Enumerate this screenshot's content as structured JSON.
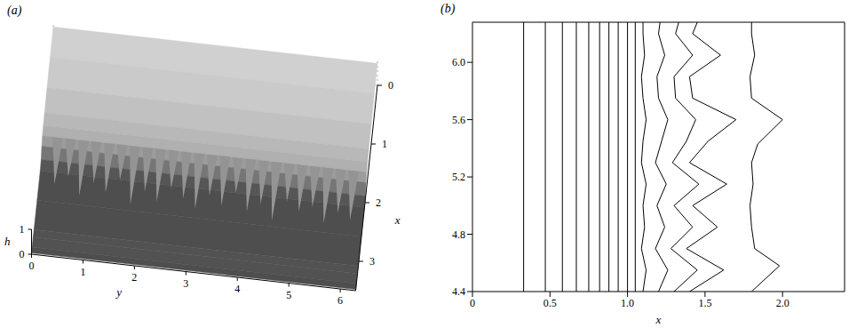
{
  "chart_data": [
    {
      "type": "surface",
      "title": "(a)",
      "xlabel": "x",
      "ylabel": "y",
      "zlabel": "h",
      "xlim": [
        0,
        3.5
      ],
      "ylim": [
        0,
        6.3
      ],
      "zlim": [
        0,
        1
      ],
      "xticks": [
        0,
        1,
        2,
        3
      ],
      "yticks": [
        0,
        1,
        2,
        3,
        4,
        5,
        6
      ],
      "zticks": [
        0,
        1
      ],
      "profile": {
        "x": [
          0,
          0.5,
          1.0,
          1.4,
          1.6,
          1.75,
          1.85,
          1.95,
          2.1,
          2.6,
          3.1,
          3.25,
          3.4,
          3.5
        ],
        "h": [
          0.88,
          0.85,
          0.8,
          0.74,
          0.69,
          0.63,
          0.45,
          0.15,
          0.05,
          0.05,
          0.05,
          0.1,
          0.05,
          0.05
        ]
      },
      "fingers": {
        "base": 1.75,
        "y": [
          0.3,
          0.55,
          0.8,
          1.05,
          1.3,
          1.55,
          1.8,
          2.05,
          2.3,
          2.55,
          2.8,
          3.05,
          3.3,
          3.55,
          3.8,
          4.05,
          4.3,
          4.55,
          4.8,
          5.05,
          5.3,
          5.55,
          5.8,
          6.05
        ],
        "x": [
          2.3,
          2.15,
          2.45,
          2.2,
          2.35,
          2.1,
          2.5,
          2.25,
          2.4,
          2.15,
          2.3,
          2.45,
          2.2,
          2.35,
          2.1,
          2.4,
          2.25,
          2.5,
          2.15,
          2.3,
          2.2,
          2.45,
          2.25,
          2.35
        ]
      }
    },
    {
      "type": "contour",
      "title": "(b)",
      "xlabel": "x",
      "xlim": [
        0,
        2.4
      ],
      "ylim": [
        4.4,
        6.28
      ],
      "xticks": [
        0,
        0.5,
        {
          "value": 1,
          "label": "1.0"
        },
        1.5,
        {
          "value": 2,
          "label": "2.0"
        }
      ],
      "yticks": [
        4.4,
        4.8,
        5.2,
        5.6,
        {
          "value": 6,
          "label": "6.0"
        }
      ],
      "color": "#000000",
      "contours": [
        {
          "x": [
            0.33,
            0.33
          ],
          "y": [
            4.4,
            6.28
          ]
        },
        {
          "x": [
            0.47,
            0.47
          ],
          "y": [
            4.4,
            6.28
          ]
        },
        {
          "x": [
            0.58,
            0.58
          ],
          "y": [
            4.4,
            6.28
          ]
        },
        {
          "x": [
            0.67,
            0.67
          ],
          "y": [
            4.4,
            6.28
          ]
        },
        {
          "x": [
            0.75,
            0.75
          ],
          "y": [
            4.4,
            6.28
          ]
        },
        {
          "x": [
            0.82,
            0.82
          ],
          "y": [
            4.4,
            6.28
          ]
        },
        {
          "x": [
            0.88,
            0.88
          ],
          "y": [
            4.4,
            6.28
          ]
        },
        {
          "x": [
            0.94,
            0.94
          ],
          "y": [
            4.4,
            6.28
          ]
        },
        {
          "x": [
            1.0,
            1.0
          ],
          "y": [
            4.4,
            6.28
          ]
        },
        {
          "x": [
            1.05,
            1.05
          ],
          "y": [
            4.4,
            6.28
          ]
        },
        {
          "x": [
            1.1,
            1.12,
            1.09,
            1.11,
            1.1,
            1.12,
            1.09,
            1.1,
            1.12,
            1.1,
            1.09,
            1.11,
            1.1,
            1.1
          ],
          "y": [
            4.4,
            4.55,
            4.7,
            4.85,
            5.0,
            5.15,
            5.3,
            5.45,
            5.6,
            5.75,
            5.9,
            6.05,
            6.2,
            6.28
          ]
        },
        {
          "x": [
            1.2,
            1.26,
            1.18,
            1.24,
            1.19,
            1.25,
            1.18,
            1.22,
            1.26,
            1.2,
            1.19,
            1.24,
            1.2,
            1.21
          ],
          "y": [
            4.4,
            4.55,
            4.7,
            4.85,
            5.0,
            5.15,
            5.3,
            5.45,
            5.6,
            5.75,
            5.9,
            6.05,
            6.2,
            6.28
          ]
        },
        {
          "x": [
            1.3,
            1.45,
            1.28,
            1.42,
            1.3,
            1.46,
            1.29,
            1.38,
            1.44,
            1.31,
            1.3,
            1.42,
            1.31,
            1.33
          ],
          "y": [
            4.4,
            4.55,
            4.7,
            4.85,
            5.0,
            5.15,
            5.3,
            5.45,
            5.6,
            5.75,
            5.9,
            6.05,
            6.2,
            6.28
          ]
        },
        {
          "x": [
            1.4,
            1.62,
            1.38,
            1.58,
            1.42,
            1.64,
            1.4,
            1.52,
            1.7,
            1.42,
            1.4,
            1.6,
            1.42,
            1.45
          ],
          "y": [
            4.4,
            4.55,
            4.7,
            4.85,
            5.0,
            5.15,
            5.3,
            5.45,
            5.6,
            5.75,
            5.9,
            6.05,
            6.2,
            6.28
          ]
        },
        {
          "x": [
            1.8,
            1.98,
            1.82,
            1.8,
            1.79,
            1.81,
            1.8,
            1.84,
            2.0,
            1.8,
            1.79,
            1.82,
            1.8,
            1.8
          ],
          "y": [
            4.4,
            4.58,
            4.7,
            4.85,
            5.0,
            5.15,
            5.3,
            5.43,
            5.6,
            5.75,
            5.9,
            6.05,
            6.2,
            6.28
          ]
        }
      ]
    }
  ]
}
